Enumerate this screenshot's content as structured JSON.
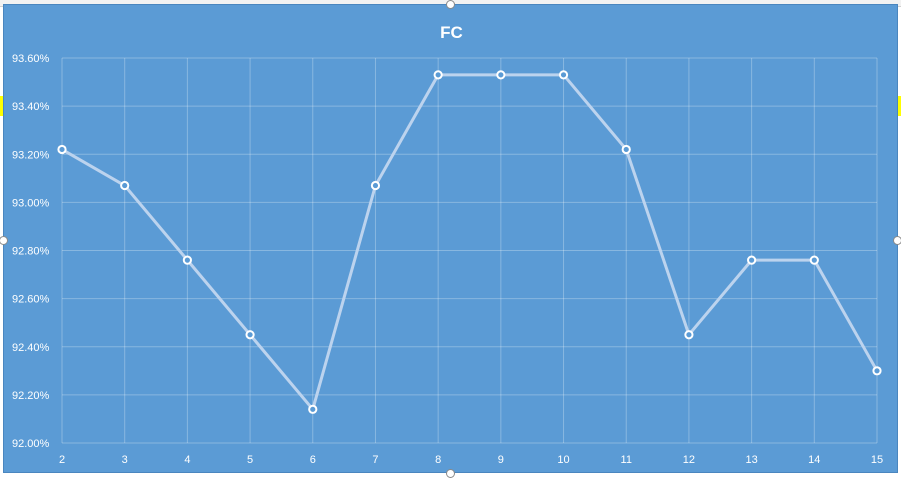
{
  "chart_data": {
    "type": "line",
    "title": "FC",
    "categories": [
      "2",
      "3",
      "4",
      "5",
      "6",
      "7",
      "8",
      "9",
      "10",
      "11",
      "12",
      "13",
      "14",
      "15"
    ],
    "series": [
      {
        "values": [
          93.22,
          93.07,
          92.76,
          92.45,
          92.14,
          93.07,
          93.53,
          93.53,
          93.53,
          93.22,
          92.45,
          92.76,
          92.76,
          92.3
        ]
      }
    ],
    "y_ticks": [
      "92.00%",
      "92.20%",
      "92.40%",
      "92.60%",
      "92.80%",
      "93.00%",
      "93.20%",
      "93.40%",
      "93.60%"
    ],
    "ylim": [
      92.0,
      93.6
    ],
    "grid": true,
    "colors": {
      "background": "#5b9bd5",
      "line": "#bcd3ee",
      "marker_fill": "#5b9bd5",
      "marker_stroke": "#ffffff",
      "text": "#ffffff"
    }
  }
}
